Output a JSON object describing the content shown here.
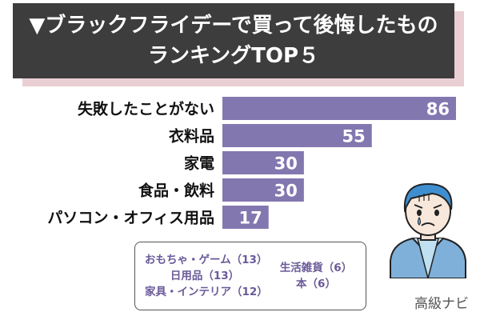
{
  "title": {
    "line1": "▼ブラックフライデーで買って後悔したもの",
    "line2": "ランキングTOP５"
  },
  "colors": {
    "bar": "#8377b0",
    "title_bg": "#3d3d3d",
    "title_shadow": "#e9cfd3",
    "note_text": "#6a5a98"
  },
  "chart_data": {
    "type": "bar",
    "orientation": "horizontal",
    "categories": [
      "失敗したことがない",
      "衣料品",
      "家電",
      "食品・飲料",
      "パソコン・オフィス用品"
    ],
    "values": [
      86,
      55,
      30,
      30,
      17
    ],
    "xlim": [
      0,
      86
    ],
    "grid": false
  },
  "notes": {
    "left": [
      "おもちゃ・ゲーム（13）",
      "日用品（13）",
      "家具・インテリア（12）"
    ],
    "right": [
      "生活雑貨（6）",
      "本（6）"
    ]
  },
  "brand": "高級ナビ",
  "icons": {
    "person": "worried-man-icon"
  }
}
